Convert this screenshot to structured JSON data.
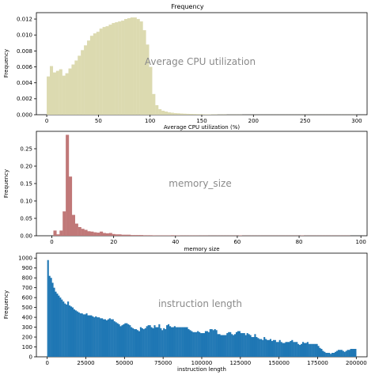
{
  "figure_title": "Frequency",
  "chart_data": [
    {
      "type": "bar",
      "title": "",
      "xlabel": "Average CPU utilization  (%)",
      "ylabel": "Frequency",
      "annotation": "Average CPU utilization",
      "color": "#dcdab0",
      "annotation_color": "#8a8a8a",
      "xlim": [
        -10,
        310
      ],
      "ylim": [
        0,
        0.0128
      ],
      "x_ticks": [
        0,
        50,
        100,
        150,
        200,
        250,
        300
      ],
      "x_tick_labels": [
        "0",
        "50",
        "100",
        "150",
        "200",
        "250",
        "300"
      ],
      "y_ticks": [
        0,
        0.002,
        0.004,
        0.006,
        0.008,
        0.01,
        0.012
      ],
      "y_tick_labels": [
        "0.000",
        "0.002",
        "0.004",
        "0.006",
        "0.008",
        "0.010",
        "0.012"
      ],
      "bin_start": 0,
      "bin_width": 3,
      "values": [
        0.0048,
        0.0061,
        0.0053,
        0.0055,
        0.0057,
        0.0049,
        0.0052,
        0.0058,
        0.0063,
        0.0068,
        0.0074,
        0.0081,
        0.0087,
        0.0093,
        0.0099,
        0.0102,
        0.0104,
        0.0108,
        0.011,
        0.0111,
        0.0113,
        0.0115,
        0.0116,
        0.0117,
        0.0118,
        0.012,
        0.0121,
        0.0122,
        0.0122,
        0.012,
        0.0117,
        0.0106,
        0.0088,
        0.006,
        0.0026,
        0.0012,
        0.0007,
        0.0005,
        0.0004,
        0.0003,
        0.00025,
        0.0002,
        0.00018,
        0.00015,
        0.00013,
        0.00011,
        0.0001,
        9e-05,
        8e-05,
        7e-05,
        6e-05,
        5e-05,
        5e-05,
        4e-05,
        4e-05,
        3e-05,
        3e-05,
        3e-05,
        2e-05,
        2e-05,
        2e-05,
        2e-05,
        2e-05,
        1e-05,
        1e-05,
        1e-05,
        1e-05,
        1e-05,
        1e-05,
        1e-05,
        1e-05,
        1e-05,
        1e-05,
        1e-05,
        1e-05,
        1e-05,
        1e-05,
        1e-05,
        1e-05,
        1e-05,
        1e-05,
        1e-05,
        1e-05,
        1e-05,
        1e-05,
        1e-05,
        1e-05,
        1e-05,
        1e-05,
        1e-05,
        1e-05,
        1e-05,
        1e-05,
        1e-05,
        1e-05,
        1e-05,
        1e-05,
        1e-05,
        1e-05,
        1e-05
      ]
    },
    {
      "type": "bar",
      "title": "",
      "xlabel": "memory size",
      "ylabel": "Frequency",
      "annotation": "memory_size",
      "color": "#c07878",
      "annotation_color": "#8a8a8a",
      "xlim": [
        -5,
        102
      ],
      "ylim": [
        0,
        0.3
      ],
      "x_ticks": [
        0,
        20,
        40,
        60,
        80,
        100
      ],
      "x_tick_labels": [
        "0",
        "20",
        "40",
        "60",
        "80",
        "100"
      ],
      "y_ticks": [
        0,
        0.05,
        0.1,
        0.15,
        0.2,
        0.25
      ],
      "y_tick_labels": [
        "0.00",
        "0.05",
        "0.10",
        "0.15",
        "0.20",
        "0.25"
      ],
      "bin_start": 0.5,
      "bin_width": 1,
      "values": [
        0.015,
        0.004,
        0.015,
        0.07,
        0.29,
        0.17,
        0.06,
        0.035,
        0.025,
        0.02,
        0.017,
        0.013,
        0.012,
        0.01,
        0.009,
        0.012,
        0.008,
        0.007,
        0.008,
        0.005,
        0.004,
        0.004,
        0.003,
        0.003,
        0.003,
        0.002,
        0.002,
        0.002,
        0.002,
        0.0015,
        0.0015,
        0.0015,
        0.0012,
        0.001,
        0.001,
        0.001,
        0.001,
        0.001,
        0.0015,
        0.001,
        0.001,
        0.0008,
        0.0008,
        0.0008,
        0.0008,
        0.0008,
        0.0008,
        0.0007,
        0.0007,
        0.0007,
        0.0006,
        0.0006,
        0.0006,
        0.0006,
        0.0006,
        0.0006,
        0.0006,
        0.0006,
        0.0006,
        0.0006,
        0.0012,
        0.0005,
        0.0005,
        0.0005,
        0.0005,
        0.0005,
        0.0005,
        0.0005,
        0.0005,
        0.0005,
        0.0005,
        0.0005,
        0.0005,
        0.0005,
        0.0005,
        0.0005,
        0.0005,
        0.0005,
        0.0005,
        0.0005,
        0.001,
        0.0005,
        0.0005,
        0.0005,
        0.0005,
        0.0005,
        0.0005,
        0.0005,
        0.0005,
        0.0005,
        0.0005,
        0.0005,
        0.0005,
        0.0005,
        0.0005,
        0.0005
      ]
    },
    {
      "type": "bar",
      "title": "",
      "xlabel": "instruction length",
      "ylabel": "Frequency",
      "annotation": "instruction length",
      "color": "#1f77b4",
      "annotation_color": "#8a8a8a",
      "xlim": [
        -7000,
        207000
      ],
      "ylim": [
        0,
        1050
      ],
      "x_ticks": [
        0,
        25000,
        50000,
        75000,
        100000,
        125000,
        150000,
        175000,
        200000
      ],
      "x_tick_labels": [
        "0",
        "25000",
        "50000",
        "75000",
        "100000",
        "125000",
        "150000",
        "175000",
        "200000"
      ],
      "y_ticks": [
        0,
        100,
        200,
        300,
        400,
        500,
        600,
        700,
        800,
        900,
        1000
      ],
      "y_tick_labels": [
        "0",
        "100",
        "200",
        "300",
        "400",
        "500",
        "600",
        "700",
        "800",
        "900",
        "1000"
      ],
      "bin_start": 0,
      "bin_width": 1000,
      "values": [
        980,
        820,
        800,
        750,
        700,
        660,
        640,
        620,
        600,
        580,
        560,
        540,
        530,
        560,
        520,
        510,
        500,
        480,
        470,
        460,
        450,
        440,
        440,
        430,
        430,
        440,
        420,
        420,
        420,
        410,
        400,
        410,
        400,
        400,
        390,
        390,
        380,
        380,
        370,
        380,
        390,
        380,
        380,
        360,
        350,
        340,
        330,
        310,
        320,
        330,
        340,
        340,
        330,
        320,
        300,
        290,
        280,
        280,
        270,
        260,
        300,
        290,
        280,
        290,
        310,
        320,
        320,
        300,
        290,
        320,
        300,
        300,
        330,
        290,
        270,
        290,
        280,
        320,
        330,
        310,
        300,
        300,
        310,
        300,
        300,
        300,
        300,
        300,
        300,
        300,
        300,
        280,
        270,
        260,
        250,
        250,
        250,
        260,
        250,
        240,
        240,
        240,
        260,
        260,
        250,
        280,
        280,
        270,
        280,
        270,
        230,
        230,
        220,
        220,
        220,
        220,
        240,
        250,
        250,
        230,
        220,
        230,
        250,
        260,
        260,
        240,
        240,
        240,
        220,
        240,
        230,
        220,
        200,
        200,
        230,
        200,
        190,
        180,
        180,
        170,
        200,
        180,
        170,
        170,
        180,
        160,
        170,
        170,
        150,
        150,
        170,
        150,
        140,
        140,
        150,
        150,
        150,
        160,
        170,
        150,
        150,
        150,
        130,
        120,
        130,
        150,
        140,
        140,
        150,
        130,
        130,
        130,
        130,
        130,
        130,
        110,
        90,
        80,
        60,
        50,
        40,
        40,
        40,
        30,
        40,
        40,
        50,
        60,
        70,
        70,
        70,
        60,
        50,
        60,
        70,
        70,
        80,
        80,
        80,
        80
      ]
    }
  ]
}
